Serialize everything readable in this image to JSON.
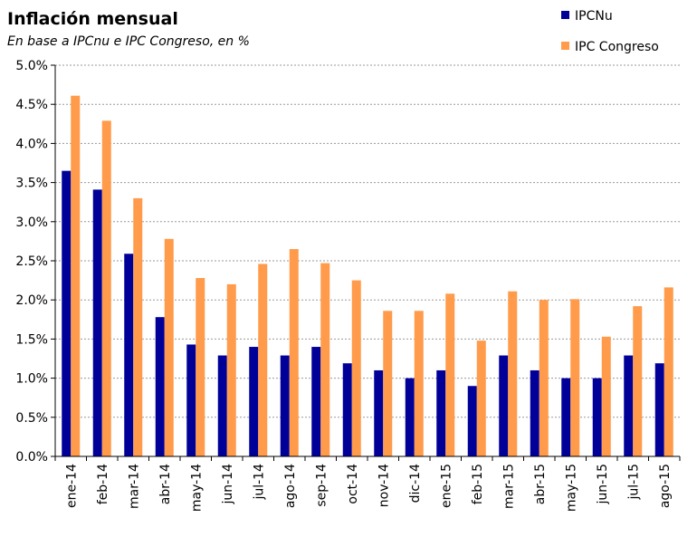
{
  "chart_data": {
    "type": "bar",
    "title": "Inflación mensual",
    "subtitle": "En base a IPCnu e IPC Congreso, en %",
    "categories": [
      "ene-14",
      "feb-14",
      "mar-14",
      "abr-14",
      "may-14",
      "jun-14",
      "jul-14",
      "ago-14",
      "sep-14",
      "oct-14",
      "nov-14",
      "dic-14",
      "ene-15",
      "feb-15",
      "mar-15",
      "abr-15",
      "may-15",
      "jun-15",
      "jul-15",
      "ago-15"
    ],
    "series": [
      {
        "name": "IPCNu",
        "color": "#000099",
        "values": [
          3.65,
          3.41,
          2.59,
          1.78,
          1.43,
          1.29,
          1.4,
          1.29,
          1.4,
          1.19,
          1.1,
          1.0,
          1.1,
          0.9,
          1.29,
          1.1,
          1.0,
          1.0,
          1.29,
          1.19
        ]
      },
      {
        "name": "IPC Congreso",
        "color": "#FF9B4A",
        "values": [
          4.61,
          4.29,
          3.3,
          2.78,
          2.28,
          2.2,
          2.46,
          2.65,
          2.47,
          2.25,
          1.86,
          1.86,
          2.08,
          1.48,
          2.11,
          2.0,
          2.01,
          1.53,
          1.92,
          2.16
        ]
      }
    ],
    "yticks": [
      "0.0%",
      "0.5%",
      "1.0%",
      "1.5%",
      "2.0%",
      "2.5%",
      "3.0%",
      "3.5%",
      "4.0%",
      "4.5%",
      "5.0%"
    ],
    "ylim": [
      0,
      5
    ],
    "grid": true,
    "legend_position": "top-right"
  }
}
